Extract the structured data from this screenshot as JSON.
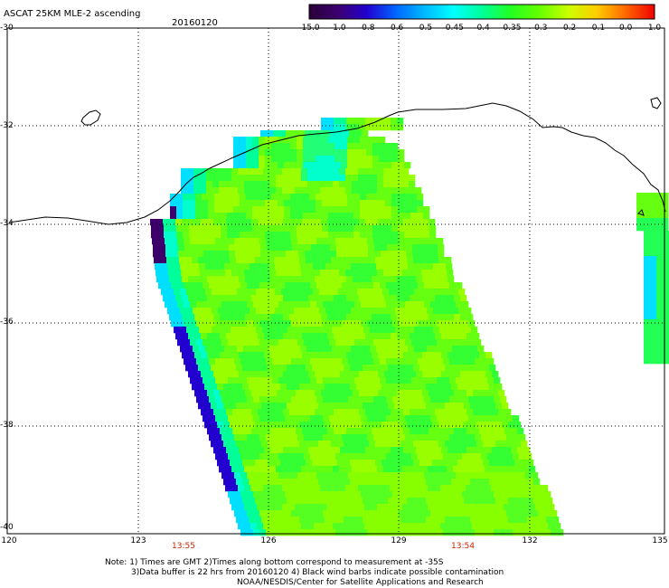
{
  "title": "ASCAT 25KM MLE-2 ascending",
  "date": "20160120",
  "colorbar": {
    "labels": [
      "-15.0",
      "-1.0",
      "-0.8",
      "-0.6",
      "-0.5",
      "-0.45",
      "-0.4",
      "-0.35",
      "-0.3",
      "-0.2",
      "-0.1",
      "0.0",
      "1.0"
    ],
    "colors": [
      "#2a0038",
      "#3d0070",
      "#2200d0",
      "#0066ff",
      "#00b8ff",
      "#00ffff",
      "#00ff99",
      "#22ff22",
      "#66ff00",
      "#ccff00",
      "#ffcc00",
      "#ff6600",
      "#ee0000"
    ]
  },
  "lat_labels": [
    "-30",
    "-32",
    "-34",
    "-36",
    "-38",
    "-40"
  ],
  "lon_labels": [
    "120",
    "123",
    "126",
    "129",
    "132",
    "135"
  ],
  "pass_times": [
    "13:55",
    "13:54"
  ],
  "notes": [
    "Note: 1) Times are GMT 2)Times along bottom correspond to measurement at -35S",
    "3)Data buffer is 22 hrs from 20160120 4) Black wind barbs indicate possible contamination",
    "NOAA/NESDIS/Center for Satellite Applications and Research"
  ]
}
